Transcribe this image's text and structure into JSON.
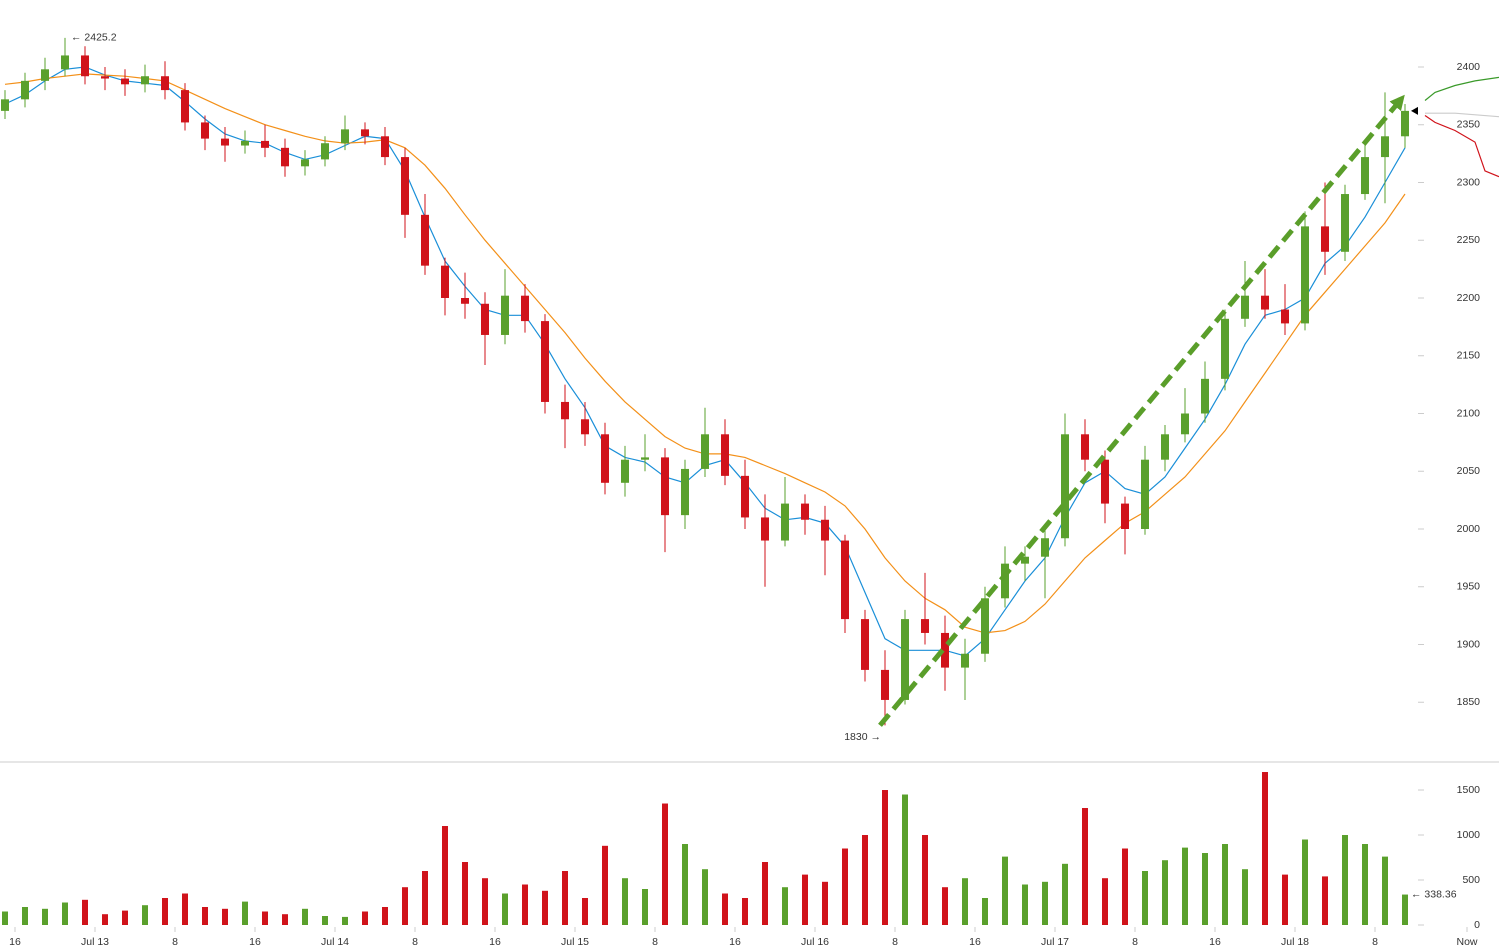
{
  "chart_data": [
    {
      "type": "candlestick",
      "up_color": "#5aa02c",
      "down_color": "#d0131b",
      "x": [
        -9,
        -7,
        -5,
        -3,
        -1,
        1,
        3,
        5,
        7,
        9,
        11,
        13,
        15,
        17,
        19,
        21,
        23,
        25,
        27,
        29,
        31,
        33,
        35,
        37,
        39,
        41,
        43,
        45,
        47,
        49,
        51,
        53,
        55,
        57,
        59,
        61,
        63,
        65,
        67,
        69,
        71,
        73,
        75,
        77,
        79,
        81,
        83,
        85,
        87,
        89,
        91,
        93,
        95,
        97,
        99,
        101,
        103,
        105,
        107,
        109,
        111,
        113,
        115,
        117,
        119,
        121,
        123,
        125,
        127,
        129,
        131
      ],
      "open": [
        2362,
        2372,
        2388,
        2398,
        2410,
        2392,
        2390,
        2385,
        2392,
        2380,
        2352,
        2338,
        2332,
        2336,
        2330,
        2314,
        2320,
        2334,
        2346,
        2340,
        2322,
        2272,
        2228,
        2200,
        2195,
        2168,
        2202,
        2180,
        2110,
        2095,
        2082,
        2040,
        2060,
        2062,
        2012,
        2052,
        2082,
        2046,
        2010,
        1990,
        2022,
        2008,
        1990,
        1922,
        1878,
        1852,
        1922,
        1910,
        1880,
        1892,
        1940,
        1970,
        1976,
        1992,
        2082,
        2060,
        2022,
        2000,
        2060,
        2082,
        2100,
        2130,
        2182,
        2202,
        2190,
        2178,
        2262,
        2240,
        2290,
        2322,
        2340
      ],
      "high": [
        2380,
        2395,
        2408,
        2425.2,
        2418,
        2400,
        2398,
        2402,
        2405,
        2386,
        2358,
        2348,
        2345,
        2350,
        2338,
        2328,
        2340,
        2358,
        2352,
        2348,
        2330,
        2290,
        2235,
        2222,
        2205,
        2225,
        2212,
        2186,
        2125,
        2110,
        2092,
        2072,
        2082,
        2070,
        2060,
        2105,
        2095,
        2060,
        2030,
        2045,
        2030,
        2020,
        1995,
        1930,
        1895,
        1930,
        1962,
        1925,
        1905,
        1950,
        1985,
        1985,
        2002,
        2100,
        2095,
        2068,
        2028,
        2072,
        2090,
        2122,
        2145,
        2190,
        2232,
        2225,
        2212,
        2275,
        2300,
        2298,
        2335,
        2378,
        2368
      ],
      "low": [
        2355,
        2365,
        2380,
        2392,
        2385,
        2380,
        2375,
        2378,
        2372,
        2345,
        2328,
        2318,
        2325,
        2322,
        2305,
        2306,
        2314,
        2328,
        2333,
        2315,
        2252,
        2220,
        2185,
        2182,
        2142,
        2160,
        2170,
        2100,
        2070,
        2072,
        2030,
        2028,
        2050,
        1980,
        2000,
        2045,
        2038,
        2000,
        1950,
        1985,
        1995,
        1960,
        1910,
        1868,
        1830,
        1848,
        1900,
        1860,
        1852,
        1885,
        1932,
        1955,
        1940,
        1985,
        2050,
        2005,
        1978,
        1995,
        2050,
        2075,
        2092,
        2120,
        2175,
        2182,
        2168,
        2172,
        2220,
        2232,
        2285,
        2282,
        2330
      ],
      "close": [
        2372,
        2388,
        2398,
        2410,
        2392,
        2390,
        2385,
        2392,
        2380,
        2352,
        2338,
        2332,
        2336,
        2330,
        2314,
        2320,
        2334,
        2346,
        2340,
        2322,
        2272,
        2228,
        2200,
        2195,
        2168,
        2202,
        2180,
        2110,
        2095,
        2082,
        2040,
        2060,
        2062,
        2012,
        2052,
        2082,
        2046,
        2010,
        1990,
        2022,
        2008,
        1990,
        1922,
        1878,
        1852,
        1922,
        1910,
        1880,
        1892,
        1940,
        1970,
        1976,
        1992,
        2082,
        2060,
        2022,
        2000,
        2060,
        2082,
        2100,
        2130,
        2182,
        2202,
        2190,
        2178,
        2262,
        2240,
        2290,
        2322,
        2340,
        2362
      ],
      "overlays": [
        {
          "color": "#1a8fd8",
          "values": [
            2368,
            2376,
            2388,
            2398,
            2400,
            2393,
            2388,
            2386,
            2384,
            2370,
            2355,
            2342,
            2336,
            2334,
            2326,
            2320,
            2324,
            2332,
            2340,
            2338,
            2310,
            2270,
            2232,
            2210,
            2190,
            2185,
            2185,
            2160,
            2130,
            2105,
            2072,
            2062,
            2058,
            2045,
            2040,
            2055,
            2060,
            2040,
            2018,
            2008,
            2010,
            2005,
            1985,
            1945,
            1905,
            1895,
            1895,
            1895,
            1890,
            1905,
            1930,
            1955,
            1975,
            2010,
            2040,
            2050,
            2035,
            2030,
            2045,
            2070,
            2095,
            2125,
            2160,
            2185,
            2190,
            2200,
            2230,
            2245,
            2270,
            2300,
            2330
          ]
        },
        {
          "color": "#f39019",
          "values": [
            2385,
            2387,
            2390,
            2392,
            2394,
            2393,
            2392,
            2390,
            2388,
            2380,
            2372,
            2364,
            2357,
            2350,
            2345,
            2340,
            2336,
            2334,
            2335,
            2337,
            2330,
            2315,
            2295,
            2272,
            2250,
            2230,
            2210,
            2190,
            2170,
            2148,
            2128,
            2110,
            2095,
            2080,
            2070,
            2065,
            2065,
            2062,
            2055,
            2048,
            2040,
            2032,
            2020,
            2000,
            1975,
            1955,
            1940,
            1930,
            1915,
            1910,
            1912,
            1920,
            1935,
            1955,
            1975,
            1990,
            2005,
            2015,
            2030,
            2045,
            2065,
            2085,
            2110,
            2135,
            2160,
            2185,
            2205,
            2225,
            2245,
            2265,
            2290
          ]
        },
        {
          "color": "#3a9a2a",
          "x": [
            133,
            134,
            136,
            138,
            140.4
          ],
          "values": [
            2371,
            2378,
            2384,
            2388,
            2391
          ]
        },
        {
          "color": "#d0131b",
          "x": [
            133,
            134,
            136,
            138,
            139,
            140.4
          ],
          "values": [
            2358,
            2352,
            2345,
            2335,
            2310,
            2305
          ]
        },
        {
          "color": "#cccccc",
          "x": [
            133,
            136,
            140.4
          ],
          "values": [
            2360,
            2360,
            2357
          ]
        }
      ],
      "trendline": {
        "color": "#5a9e2a",
        "x": [
          78.5,
          130.5
        ],
        "values": [
          1830,
          2371
        ]
      },
      "high_label": "← 2425.2",
      "low_label": "1830 →",
      "xlim": [
        -9.5,
        140.4
      ],
      "ylim": [
        1800,
        2458
      ],
      "yticks": [
        1850,
        1900,
        1950,
        2000,
        2050,
        2100,
        2150,
        2200,
        2250,
        2300,
        2350,
        2400
      ]
    },
    {
      "type": "bar",
      "x": [
        -9,
        -7,
        -5,
        -3,
        -1,
        1,
        3,
        5,
        7,
        9,
        11,
        13,
        15,
        17,
        19,
        21,
        23,
        25,
        27,
        29,
        31,
        33,
        35,
        37,
        39,
        41,
        43,
        45,
        47,
        49,
        51,
        53,
        55,
        57,
        59,
        61,
        63,
        65,
        67,
        69,
        71,
        73,
        75,
        77,
        79,
        81,
        83,
        85,
        87,
        89,
        91,
        93,
        95,
        97,
        99,
        101,
        103,
        105,
        107,
        109,
        111,
        113,
        115,
        117,
        119,
        121,
        123,
        125,
        127,
        129,
        131
      ],
      "values": [
        150,
        200,
        180,
        250,
        280,
        120,
        160,
        220,
        300,
        350,
        200,
        180,
        260,
        150,
        120,
        180,
        100,
        90,
        150,
        200,
        420,
        600,
        1100,
        700,
        520,
        350,
        450,
        380,
        600,
        300,
        880,
        520,
        400,
        1350,
        900,
        620,
        350,
        300,
        700,
        420,
        560,
        480,
        850,
        1000,
        1500,
        1450,
        1000,
        420,
        520,
        300,
        760,
        450,
        480,
        680,
        1300,
        520,
        850,
        600,
        720,
        860,
        800,
        900,
        620,
        1700,
        560,
        950,
        540,
        1000,
        900,
        760,
        338.36
      ],
      "last_label": "← 338.36",
      "xlim": [
        -9.5,
        140.4
      ],
      "ylim": [
        0,
        1778
      ],
      "yticks": [
        0,
        500,
        1000,
        1500
      ],
      "xticks": [
        {
          "value": -8,
          "label": "16"
        },
        {
          "value": 0,
          "label": "Jul 13"
        },
        8,
        16,
        {
          "value": 24,
          "label": "Jul 14"
        },
        {
          "value": 32,
          "label": "8"
        },
        {
          "value": 40,
          "label": "16"
        },
        {
          "value": 48,
          "label": "Jul 15"
        },
        {
          "value": 56,
          "label": "8"
        },
        {
          "value": 64,
          "label": "16"
        },
        {
          "value": 72,
          "label": "Jul 16"
        },
        {
          "value": 80,
          "label": "8"
        },
        {
          "value": 88,
          "label": "16"
        },
        {
          "value": 96,
          "label": "Jul 17"
        },
        {
          "value": 104,
          "label": "8"
        },
        {
          "value": 112,
          "label": "16"
        },
        {
          "value": 120,
          "label": "Jul 18"
        },
        {
          "value": 128,
          "label": "8"
        },
        {
          "value": 137.2,
          "label": "Now"
        }
      ]
    }
  ]
}
